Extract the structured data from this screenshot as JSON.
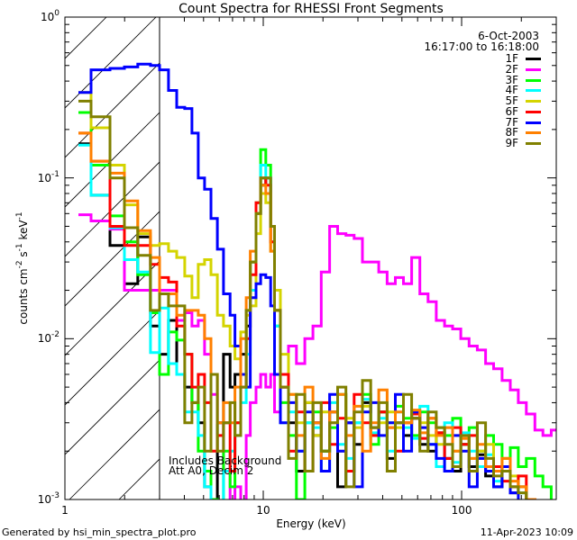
{
  "chart_data": {
    "type": "line",
    "title": "Count Spectra for RHESSI Front Segments",
    "xlabel": "Energy (keV)",
    "ylabel": {
      "text": "counts cm",
      "parts": [
        {
          "t": "counts cm",
          "s": "-2"
        },
        {
          "t": " s",
          "s": "-1"
        },
        {
          "t": " keV",
          "s": "-1"
        }
      ]
    },
    "xscale": "log",
    "yscale": "log",
    "xlim": [
      1,
      300
    ],
    "ylim": [
      0.001,
      1
    ],
    "x_ticks": [
      "1",
      "10",
      "100"
    ],
    "y_ticks": [
      {
        "base": "10",
        "exp": "0"
      },
      {
        "base": "10",
        "exp": "-1"
      },
      {
        "base": "10",
        "exp": "-2"
      },
      {
        "base": "10",
        "exp": "-3"
      }
    ],
    "date": "6-Oct-2003",
    "time_range": "16:17:00 to 16:18:00",
    "annotations": [
      "Includes Background",
      "Att A0, Decim 2"
    ],
    "shaded_region_kev": [
      1,
      3
    ],
    "legend_position": "top-right",
    "energy_bin_edges_kev": [
      1.17,
      1.355,
      1.687,
      1.995,
      2.33,
      2.7,
      3.0,
      3.33,
      3.66,
      4.02,
      4.37,
      4.7,
      5.06,
      5.45,
      5.87,
      6.3,
      6.8,
      7.2,
      7.7,
      8.2,
      8.6,
      9.2,
      9.7,
      10.3,
      10.9,
      11.4,
      12.2,
      13.4,
      14.7,
      16.2,
      17.8,
      19.6,
      21.6,
      23.7,
      26.1,
      28.7,
      31.6,
      34.8,
      38.2,
      42.1,
      46.3,
      50.9,
      56,
      61.6,
      67.7,
      74.5,
      82,
      90,
      99,
      109,
      120,
      132,
      145,
      160,
      176,
      193,
      212,
      234,
      257,
      283,
      300
    ],
    "series": [
      {
        "name": "1F",
        "color": "#000000",
        "values": [
          0.163,
          0.078,
          0.038,
          0.022,
          0.043,
          0.012,
          0.008,
          0.013,
          0.006,
          0.005,
          0.004,
          0.003,
          0.0012,
          0.0009,
          0.003,
          0.008,
          0.005,
          0.006,
          0.008,
          0.012,
          0.03,
          0.06,
          0.09,
          0.1,
          0.05,
          0.015,
          0.005,
          0.003,
          0.0015,
          0.004,
          0.0025,
          0.002,
          0.0035,
          0.0012,
          0.003,
          0.0022,
          0.004,
          0.0028,
          0.0035,
          0.0018,
          0.003,
          0.0025,
          0.0032,
          0.0022,
          0.002,
          0.0026,
          0.0018,
          0.0015,
          0.0022,
          0.0016,
          0.0019,
          0.0014,
          0.0012,
          0.0015,
          0.0011,
          0.0012,
          0.0009,
          0.0008,
          0.0008,
          0.0008
        ]
      },
      {
        "name": "2F",
        "color": "#ff00ff",
        "values": [
          0.059,
          0.054,
          0.048,
          0.02,
          0.02,
          0.02,
          0.02,
          0.02,
          0.013,
          0.0145,
          0.012,
          0.013,
          0.008,
          0.0045,
          0.003,
          0.0015,
          0.0009,
          0.0012,
          0.0009,
          0.0025,
          0.004,
          0.005,
          0.006,
          0.005,
          0.006,
          0.0035,
          0.005,
          0.009,
          0.007,
          0.01,
          0.012,
          0.026,
          0.05,
          0.045,
          0.044,
          0.042,
          0.03,
          0.03,
          0.026,
          0.022,
          0.024,
          0.022,
          0.032,
          0.019,
          0.017,
          0.013,
          0.012,
          0.0115,
          0.01,
          0.009,
          0.0085,
          0.007,
          0.0065,
          0.0055,
          0.0048,
          0.004,
          0.0034,
          0.0027,
          0.0025,
          0.0027
        ]
      },
      {
        "name": "3F",
        "color": "#00ff00",
        "values": [
          0.255,
          0.12,
          0.058,
          0.04,
          0.025,
          0.0145,
          0.006,
          0.011,
          0.0098,
          0.008,
          0.004,
          0.002,
          0.0015,
          0.001,
          0.0009,
          0.002,
          0.0012,
          0.003,
          0.006,
          0.015,
          0.03,
          0.07,
          0.15,
          0.12,
          0.05,
          0.012,
          0.004,
          0.0025,
          0.001,
          0.003,
          0.0035,
          0.002,
          0.0028,
          0.0045,
          0.0015,
          0.003,
          0.0045,
          0.0022,
          0.0035,
          0.003,
          0.0038,
          0.0032,
          0.0025,
          0.0035,
          0.003,
          0.0028,
          0.0025,
          0.0032,
          0.0022,
          0.0028,
          0.002,
          0.0025,
          0.0022,
          0.0018,
          0.0021,
          0.0016,
          0.0018,
          0.0014,
          0.0012,
          0.0009
        ]
      },
      {
        "name": "4F",
        "color": "#00ffff",
        "values": [
          0.16,
          0.078,
          0.049,
          0.031,
          0.026,
          0.0082,
          0.0155,
          0.007,
          0.006,
          0.0035,
          0.0035,
          0.0025,
          0.0012,
          0.0008,
          0.0009,
          0.0015,
          0.002,
          0.0025,
          0.004,
          0.008,
          0.02,
          0.06,
          0.12,
          0.1,
          0.04,
          0.012,
          0.003,
          0.0035,
          0.002,
          0.003,
          0.0028,
          0.0015,
          0.004,
          0.0022,
          0.0018,
          0.003,
          0.0042,
          0.0026,
          0.0032,
          0.002,
          0.0035,
          0.0028,
          0.0024,
          0.0038,
          0.0022,
          0.0016,
          0.003,
          0.0017,
          0.0026,
          0.002,
          0.0016,
          0.0019,
          0.0013,
          0.0016,
          0.0012,
          0.0011,
          0.0009,
          0.0008,
          0.0008,
          0.0008
        ]
      },
      {
        "name": "5F",
        "color": "#d4d400",
        "values": [
          0.34,
          0.205,
          0.12,
          0.068,
          0.045,
          0.038,
          0.039,
          0.035,
          0.032,
          0.0245,
          0.018,
          0.029,
          0.031,
          0.025,
          0.014,
          0.012,
          0.009,
          0.0075,
          0.011,
          0.014,
          0.016,
          0.045,
          0.08,
          0.07,
          0.035,
          0.02,
          0.008,
          0.0045,
          0.003,
          0.004,
          0.0025,
          0.0035,
          0.003,
          0.002,
          0.0032,
          0.0028,
          0.0038,
          0.0025,
          0.003,
          0.0035,
          0.0028,
          0.003,
          0.0035,
          0.003,
          0.0025,
          0.0022,
          0.0028,
          0.002,
          0.0024,
          0.0018,
          0.002,
          0.0022,
          0.0016,
          0.0018,
          0.0014,
          0.0012,
          0.001,
          0.0009,
          0.0008,
          0.0008
        ]
      },
      {
        "name": "6F",
        "color": "#ff0000",
        "values": [
          0.19,
          0.127,
          0.05,
          0.038,
          0.038,
          0.029,
          0.024,
          0.0225,
          0.012,
          0.008,
          0.005,
          0.006,
          0.004,
          0.002,
          0.0025,
          0.003,
          0.0015,
          0.003,
          0.005,
          0.01,
          0.025,
          0.07,
          0.1,
          0.09,
          0.04,
          0.015,
          0.006,
          0.002,
          0.0035,
          0.0015,
          0.003,
          0.004,
          0.0022,
          0.0032,
          0.0015,
          0.0045,
          0.003,
          0.0025,
          0.0035,
          0.0028,
          0.002,
          0.003,
          0.0034,
          0.0024,
          0.0032,
          0.0026,
          0.0018,
          0.0028,
          0.0022,
          0.0025,
          0.0018,
          0.0015,
          0.0016,
          0.0013,
          0.0012,
          0.0014,
          0.001,
          0.0009,
          0.0008,
          0.0008
        ]
      },
      {
        "name": "7F",
        "color": "#0000ff",
        "values": [
          0.34,
          0.47,
          0.48,
          0.49,
          0.51,
          0.5,
          0.47,
          0.35,
          0.275,
          0.27,
          0.19,
          0.1,
          0.085,
          0.056,
          0.036,
          0.019,
          0.014,
          0.009,
          0.006,
          0.005,
          0.018,
          0.022,
          0.025,
          0.024,
          0.016,
          0.006,
          0.003,
          0.004,
          0.002,
          0.0035,
          0.003,
          0.0015,
          0.0045,
          0.002,
          0.003,
          0.0012,
          0.0035,
          0.004,
          0.0025,
          0.003,
          0.0045,
          0.002,
          0.0035,
          0.0028,
          0.0022,
          0.0018,
          0.0015,
          0.0025,
          0.002,
          0.0012,
          0.0018,
          0.0015,
          0.0012,
          0.0016,
          0.0011,
          0.0009,
          0.0008,
          0.0008,
          0.0008,
          0.0008
        ]
      },
      {
        "name": "8F",
        "color": "#ff8000",
        "values": [
          0.19,
          0.127,
          0.107,
          0.072,
          0.047,
          0.032,
          0.019,
          0.019,
          0.014,
          0.015,
          0.015,
          0.014,
          0.01,
          0.006,
          0.003,
          0.004,
          0.003,
          0.005,
          0.01,
          0.018,
          0.035,
          0.06,
          0.09,
          0.08,
          0.035,
          0.015,
          0.005,
          0.0045,
          0.0025,
          0.005,
          0.003,
          0.0018,
          0.0035,
          0.0045,
          0.0025,
          0.0038,
          0.002,
          0.003,
          0.0048,
          0.0028,
          0.0035,
          0.003,
          0.0036,
          0.0026,
          0.0032,
          0.0025,
          0.0028,
          0.002,
          0.0024,
          0.0018,
          0.0022,
          0.0016,
          0.0015,
          0.0018,
          0.0013,
          0.0012,
          0.001,
          0.0009,
          0.0008,
          0.0008
        ]
      },
      {
        "name": "9F",
        "color": "#808000",
        "values": [
          0.3,
          0.24,
          0.1,
          0.049,
          0.033,
          0.015,
          0.019,
          0.016,
          0.016,
          0.003,
          0.004,
          0.005,
          0.002,
          0.006,
          0.002,
          0.003,
          0.004,
          0.0025,
          0.005,
          0.015,
          0.03,
          0.06,
          0.1,
          0.1,
          0.05,
          0.015,
          0.005,
          0.0018,
          0.0045,
          0.0015,
          0.004,
          0.002,
          0.003,
          0.005,
          0.0012,
          0.0035,
          0.0055,
          0.0028,
          0.004,
          0.0015,
          0.003,
          0.0045,
          0.0032,
          0.002,
          0.0035,
          0.0028,
          0.0022,
          0.0016,
          0.0025,
          0.0015,
          0.003,
          0.0018,
          0.0014,
          0.0015,
          0.0012,
          0.0011,
          0.0009,
          0.0008,
          0.0008,
          0.0008
        ]
      }
    ]
  },
  "footer": {
    "generated_by": "Generated by hsi_min_spectra_plot.pro",
    "timestamp": "11-Apr-2023 10:09"
  }
}
